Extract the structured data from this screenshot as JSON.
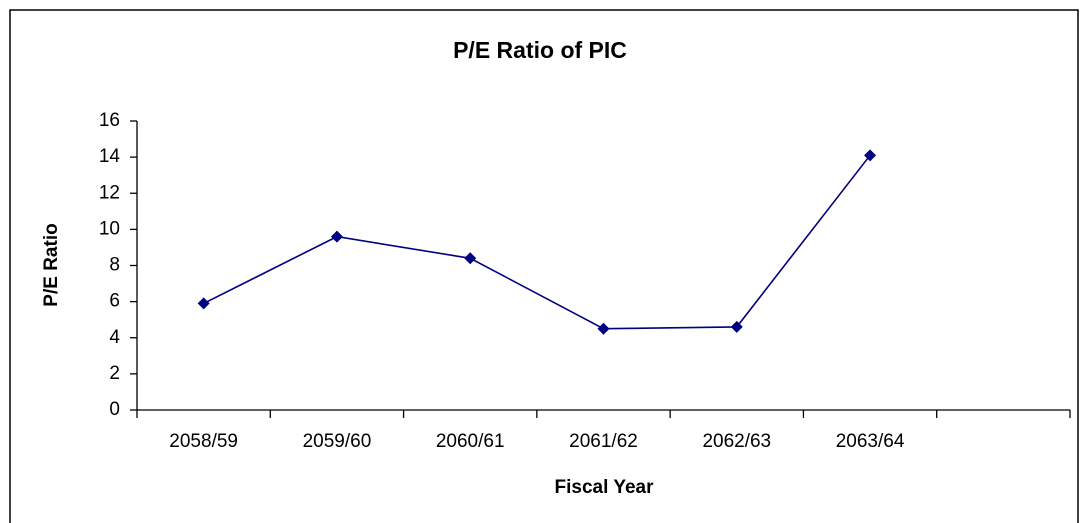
{
  "chart_data": {
    "type": "line",
    "title": "P/E Ratio of PIC",
    "y_label": "P/E Ratio",
    "x_label": "Fiscal Year",
    "categories": [
      "2058/59",
      "2059/60",
      "2060/61",
      "2061/62",
      "2062/63",
      "2063/64",
      null
    ],
    "series": [
      {
        "name": "P/E Ratio",
        "color": "#000080",
        "values": [
          5.9,
          9.6,
          8.4,
          4.5,
          4.6,
          14.1,
          null
        ]
      }
    ],
    "ylim": [
      0,
      16
    ],
    "yticks": [
      0,
      2,
      4,
      6,
      8,
      10,
      12,
      14,
      16
    ],
    "grid": false
  }
}
